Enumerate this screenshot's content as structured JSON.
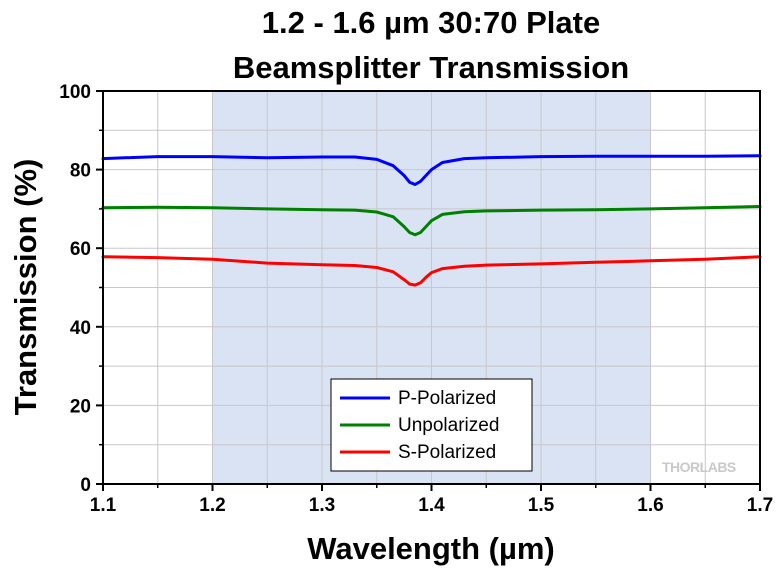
{
  "chart_data": {
    "type": "line",
    "title": [
      "1.2 - 1.6 µm 30:70 Plate",
      "Beamsplitter Transmission"
    ],
    "xlabel": "Wavelength (µm)",
    "ylabel": "Transmission (%)",
    "xlim": [
      1.1,
      1.7
    ],
    "ylim": [
      0,
      100
    ],
    "x_ticks": [
      "1.1",
      "1.2",
      "1.3",
      "1.4",
      "1.5",
      "1.6",
      "1.7"
    ],
    "y_ticks": [
      "0",
      "20",
      "40",
      "60",
      "80",
      "100"
    ],
    "grid": true,
    "highlight_band": [
      1.2,
      1.6
    ],
    "legend_position": "bottom-center",
    "watermark": "THORLABS",
    "series": [
      {
        "name": "P-Polarized",
        "color": "#0000ff",
        "x": [
          1.1,
          1.15,
          1.2,
          1.25,
          1.3,
          1.33,
          1.35,
          1.365,
          1.375,
          1.38,
          1.385,
          1.39,
          1.395,
          1.4,
          1.41,
          1.43,
          1.45,
          1.5,
          1.55,
          1.6,
          1.65,
          1.7
        ],
        "y": [
          82.8,
          83.3,
          83.3,
          83.0,
          83.2,
          83.2,
          82.6,
          81.0,
          78.5,
          76.8,
          76.2,
          77.0,
          78.5,
          80.0,
          81.8,
          82.8,
          83.0,
          83.3,
          83.4,
          83.4,
          83.4,
          83.5
        ]
      },
      {
        "name": "Unpolarized",
        "color": "#008000",
        "x": [
          1.1,
          1.15,
          1.2,
          1.25,
          1.3,
          1.33,
          1.35,
          1.365,
          1.375,
          1.38,
          1.385,
          1.39,
          1.395,
          1.4,
          1.41,
          1.43,
          1.45,
          1.5,
          1.55,
          1.6,
          1.65,
          1.7
        ],
        "y": [
          70.3,
          70.4,
          70.3,
          70.0,
          69.8,
          69.7,
          69.2,
          68.0,
          65.5,
          64.0,
          63.4,
          64.0,
          65.5,
          67.0,
          68.6,
          69.3,
          69.5,
          69.7,
          69.8,
          70.0,
          70.3,
          70.6
        ]
      },
      {
        "name": "S-Polarized",
        "color": "#ff0000",
        "x": [
          1.1,
          1.15,
          1.2,
          1.25,
          1.3,
          1.33,
          1.35,
          1.365,
          1.375,
          1.38,
          1.385,
          1.39,
          1.395,
          1.4,
          1.41,
          1.43,
          1.45,
          1.5,
          1.55,
          1.6,
          1.65,
          1.7
        ],
        "y": [
          57.8,
          57.6,
          57.2,
          56.2,
          55.8,
          55.6,
          55.1,
          54.0,
          52.0,
          50.9,
          50.6,
          51.2,
          52.6,
          53.8,
          54.8,
          55.4,
          55.7,
          56.0,
          56.4,
          56.8,
          57.2,
          57.8
        ]
      }
    ]
  }
}
